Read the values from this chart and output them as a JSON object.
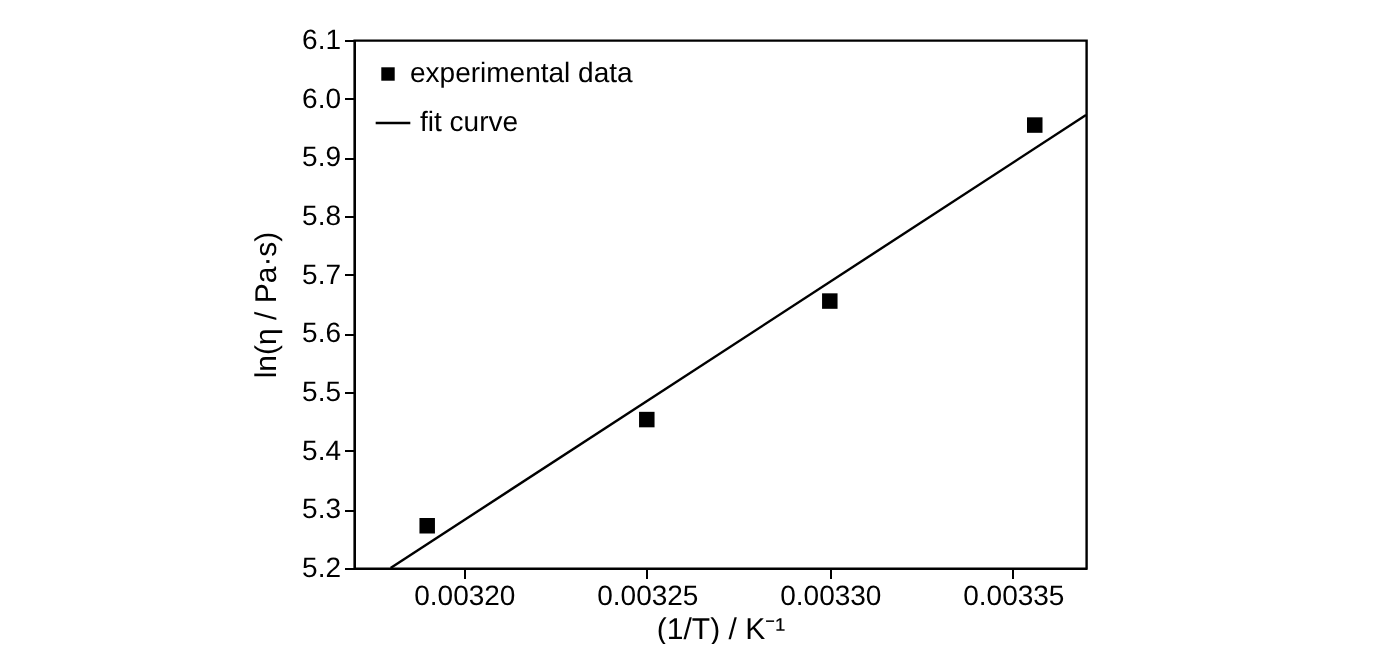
{
  "chart_data": {
    "type": "scatter",
    "xlabel": "(1/T) / K⁻¹",
    "ylabel": "ln(η / Pa·s)",
    "xlim": [
      0.00317,
      0.00337
    ],
    "xticks": [
      {
        "value": 0.0032,
        "label": "0.00320"
      },
      {
        "value": 0.00325,
        "label": "0.00325"
      },
      {
        "value": 0.0033,
        "label": "0.00330"
      },
      {
        "value": 0.00335,
        "label": "0.00335"
      }
    ],
    "ylim": [
      5.2,
      6.1
    ],
    "yticks": [
      {
        "value": 5.2,
        "label": "5.2"
      },
      {
        "value": 5.3,
        "label": "5.3"
      },
      {
        "value": 5.4,
        "label": "5.4"
      },
      {
        "value": 5.5,
        "label": "5.5"
      },
      {
        "value": 5.6,
        "label": "5.6"
      },
      {
        "value": 5.7,
        "label": "5.7"
      },
      {
        "value": 5.8,
        "label": "5.8"
      },
      {
        "value": 5.9,
        "label": "5.9"
      },
      {
        "value": 6.0,
        "label": "6.0"
      },
      {
        "value": 6.1,
        "label": "6.1"
      }
    ],
    "series": [
      {
        "name": "experimental data",
        "color": "#000000",
        "x": [
          0.00319,
          0.00325,
          0.0033,
          0.003356
        ],
        "values": [
          5.272,
          5.453,
          5.655,
          5.955
        ]
      },
      {
        "name": "fit curve",
        "type": "line",
        "marker": "none",
        "line_style": "solid",
        "color": "#000000",
        "x": [
          0.00318,
          0.00337
        ],
        "values": [
          5.2,
          5.972
        ]
      }
    ],
    "marker": "square",
    "grid": false,
    "legend": "top left"
  }
}
